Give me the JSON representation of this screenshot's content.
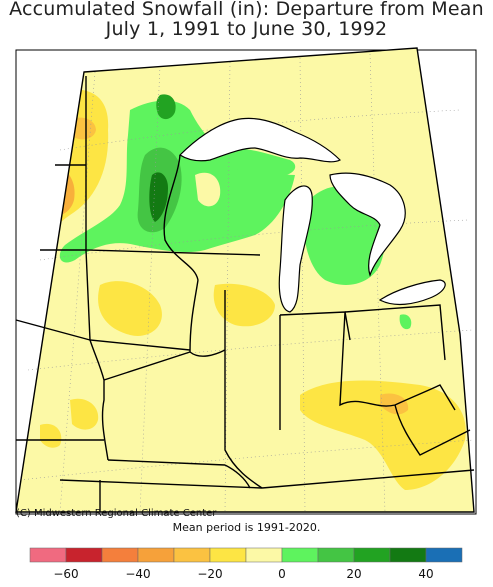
{
  "title_line1": "Accumulated Snowfall (in): Departure from Mean",
  "title_line2": "July 1, 1991 to June 30, 1992",
  "credit": "(C) Midwestern Regional Climate Center",
  "mean_period": "Mean period is 1991-2020.",
  "legend": {
    "colors": [
      "#f06a80",
      "#c8232d",
      "#f47f3c",
      "#f6a13a",
      "#fbc241",
      "#fde544",
      "#fcf9a6",
      "#5ef35e",
      "#44c544",
      "#22a322",
      "#137a13",
      "#1a6fb5"
    ],
    "ticks": [
      "−60",
      "−40",
      "−20",
      "0",
      "20",
      "40"
    ]
  }
}
